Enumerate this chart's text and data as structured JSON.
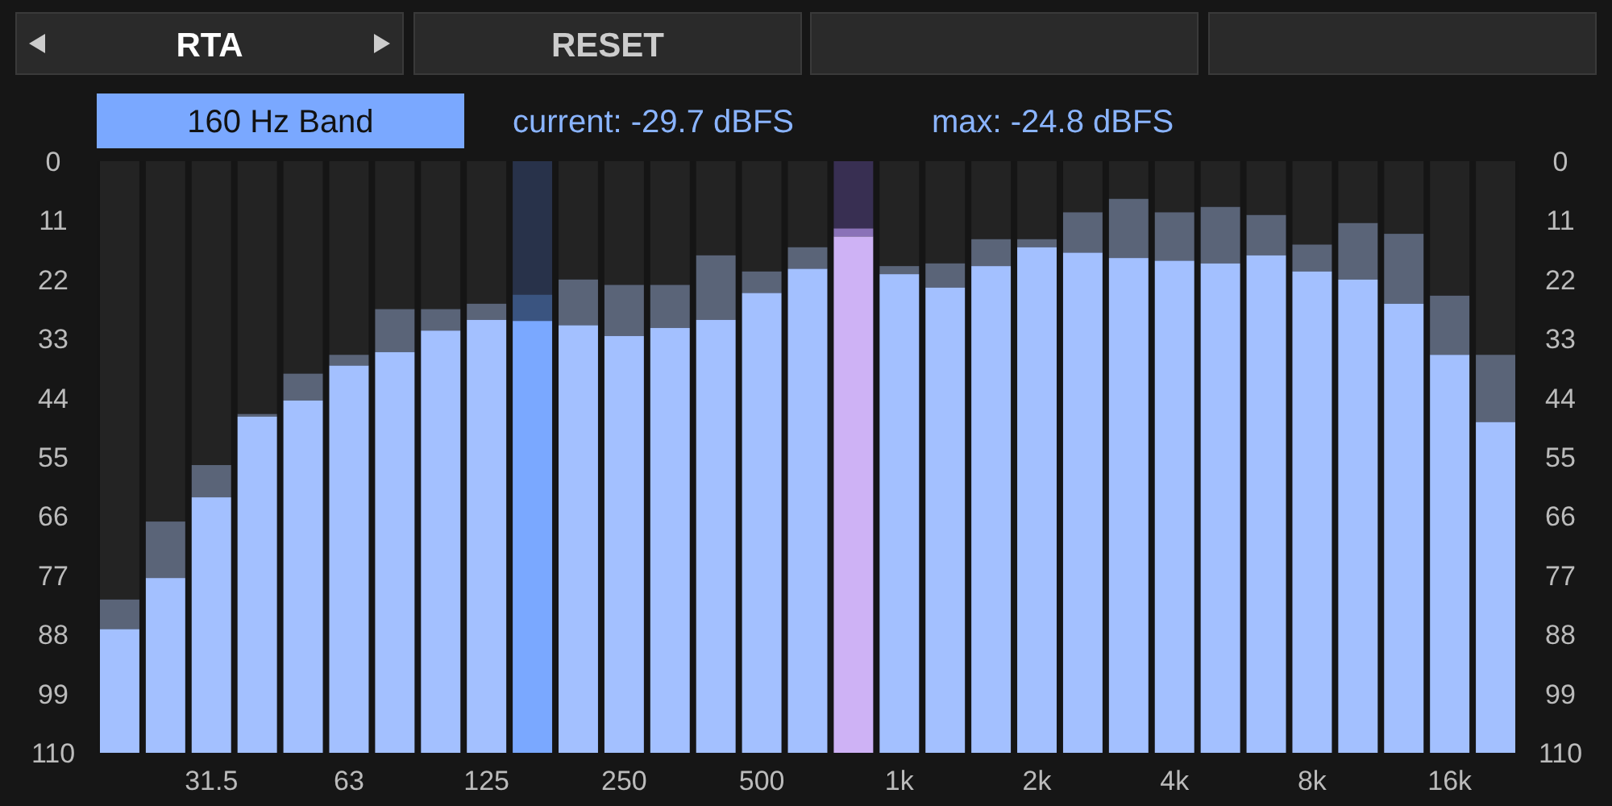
{
  "chart_data": {
    "type": "bar",
    "stacked": true,
    "categories": [
      null,
      null,
      "31.5",
      null,
      null,
      "63",
      null,
      null,
      "125",
      null,
      null,
      "250",
      null,
      null,
      "500",
      null,
      null,
      "1k",
      null,
      null,
      "2k",
      null,
      null,
      "4k",
      null,
      null,
      "8k",
      null,
      null,
      "16k",
      null
    ],
    "series": [
      {
        "colors": [
          "#232323",
          "#232323",
          "#232323",
          "#232323",
          "#232323",
          "#232323",
          "#232323",
          "#232323",
          "#232323",
          "#28324a",
          "#232323",
          "#232323",
          "#232323",
          "#232323",
          "#232323",
          "#232323",
          "#382f52",
          "#232323",
          "#232323",
          "#232323",
          "#232323",
          "#232323",
          "#232323",
          "#232323",
          "#232323",
          "#232323",
          "#232323",
          "#232323",
          "#232323",
          "#232323",
          "#232323"
        ],
        "values": [
          81.5,
          67,
          56.5,
          47,
          39.5,
          36,
          27.5,
          27.5,
          26.5,
          24.8,
          22,
          23,
          23,
          17.5,
          20.5,
          16,
          12.5,
          19.5,
          19,
          14.5,
          14.5,
          9.5,
          7,
          9.5,
          8.5,
          10,
          15.5,
          11.5,
          13.5,
          25,
          36
        ]
      },
      {
        "colors": [
          "#5a6478",
          "#5a6478",
          "#5a6478",
          "#5a6478",
          "#5a6478",
          "#5a6478",
          "#5a6478",
          "#5a6478",
          "#5a6478",
          "#3a5480",
          "#5a6478",
          "#5a6478",
          "#5a6478",
          "#5a6478",
          "#5a6478",
          "#5a6478",
          "#8a72b8",
          "#5a6478",
          "#5a6478",
          "#5a6478",
          "#5a6478",
          "#5a6478",
          "#5a6478",
          "#5a6478",
          "#5a6478",
          "#5a6478",
          "#5a6478",
          "#5a6478",
          "#5a6478",
          "#5a6478",
          "#5a6478"
        ],
        "values": [
          5.5,
          10.5,
          6,
          0.5,
          5,
          2,
          8,
          4,
          3,
          4.9,
          8.5,
          9.5,
          8,
          12,
          4,
          4,
          1.5,
          1.5,
          4.5,
          5,
          1.5,
          7.5,
          11,
          9,
          10.5,
          7.5,
          5,
          10.5,
          13,
          11,
          12.5
        ]
      },
      {
        "colors": [
          "#a3c0ff",
          "#a3c0ff",
          "#a3c0ff",
          "#a3c0ff",
          "#a3c0ff",
          "#a3c0ff",
          "#a3c0ff",
          "#a3c0ff",
          "#a3c0ff",
          "#7aa8ff",
          "#a3c0ff",
          "#a3c0ff",
          "#a3c0ff",
          "#a3c0ff",
          "#a3c0ff",
          "#a3c0ff",
          "#ceb2f5",
          "#a3c0ff",
          "#a3c0ff",
          "#a3c0ff",
          "#a3c0ff",
          "#a3c0ff",
          "#a3c0ff",
          "#a3c0ff",
          "#a3c0ff",
          "#a3c0ff",
          "#a3c0ff",
          "#a3c0ff",
          "#a3c0ff",
          "#a3c0ff",
          "#a3c0ff"
        ],
        "values": [
          23,
          32.5,
          47.5,
          62.5,
          65.5,
          72,
          74.5,
          78.5,
          80.5,
          80.3,
          79.5,
          77.5,
          79,
          80.5,
          85.5,
          90,
          96,
          89,
          86.5,
          90.5,
          94,
          93,
          92,
          91.5,
          91,
          92.5,
          89.5,
          88,
          83.5,
          74,
          61.5
        ]
      }
    ],
    "ylim": [
      110,
      0
    ],
    "yticks": [
      0,
      11,
      22,
      33,
      44,
      55,
      66,
      77,
      88,
      99,
      110
    ],
    "y2lim": [
      110,
      0
    ],
    "y2ticks": [
      0,
      11,
      22,
      33,
      44,
      55,
      66,
      77,
      88,
      99,
      110
    ],
    "grid": false,
    "annotations": [
      "RTA",
      "RESET",
      "160 Hz Band",
      "current:  -29.7 dBFS",
      "max:  -24.8 dBFS"
    ]
  }
}
